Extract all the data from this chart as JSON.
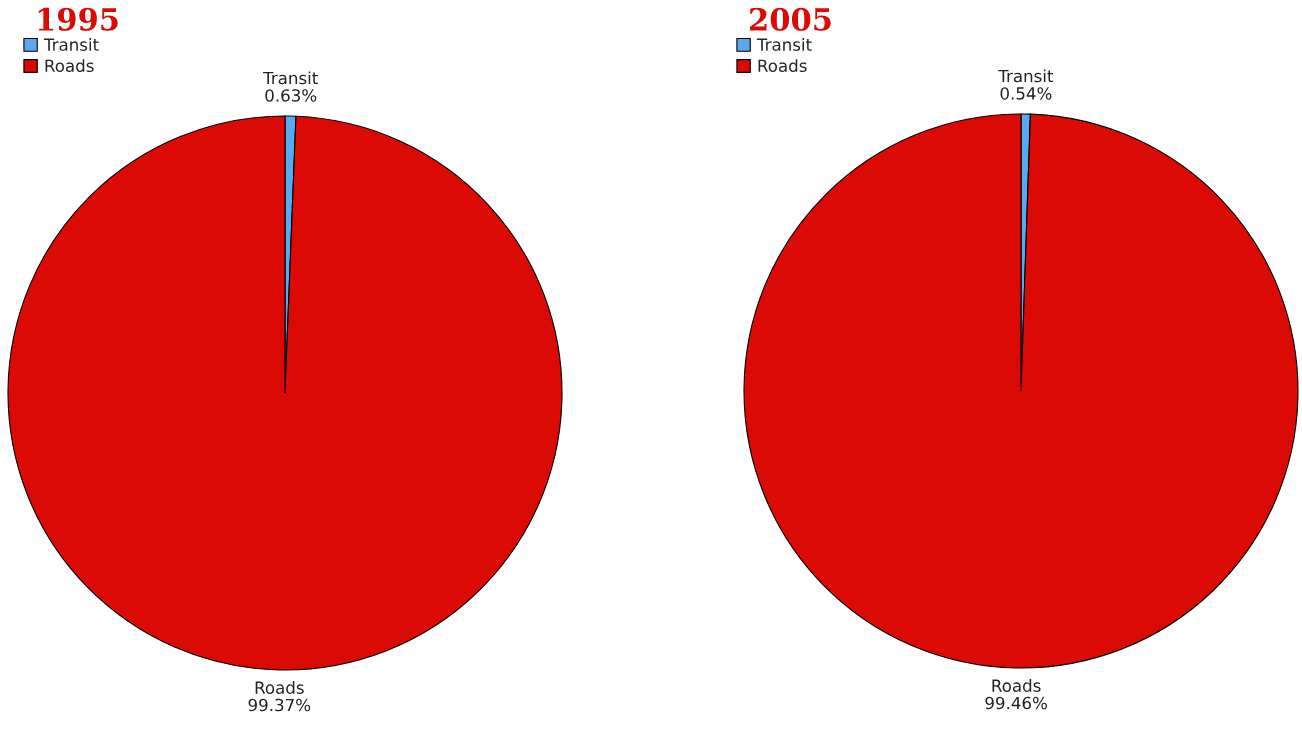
{
  "chart_data": [
    {
      "type": "pie",
      "title": "1995",
      "categories": [
        "Transit",
        "Roads"
      ],
      "values": [
        0.63,
        99.37
      ],
      "value_labels": [
        "0.63%",
        "99.37%"
      ],
      "colors": [
        "#5aa8f0",
        "#dc0a04"
      ],
      "legend": "top left"
    },
    {
      "type": "pie",
      "title": "2005",
      "categories": [
        "Transit",
        "Roads"
      ],
      "values": [
        0.54,
        99.46
      ],
      "value_labels": [
        "0.54%",
        "99.46%"
      ],
      "colors": [
        "#5aa8f0",
        "#dc0a04"
      ],
      "legend": "top left"
    }
  ]
}
